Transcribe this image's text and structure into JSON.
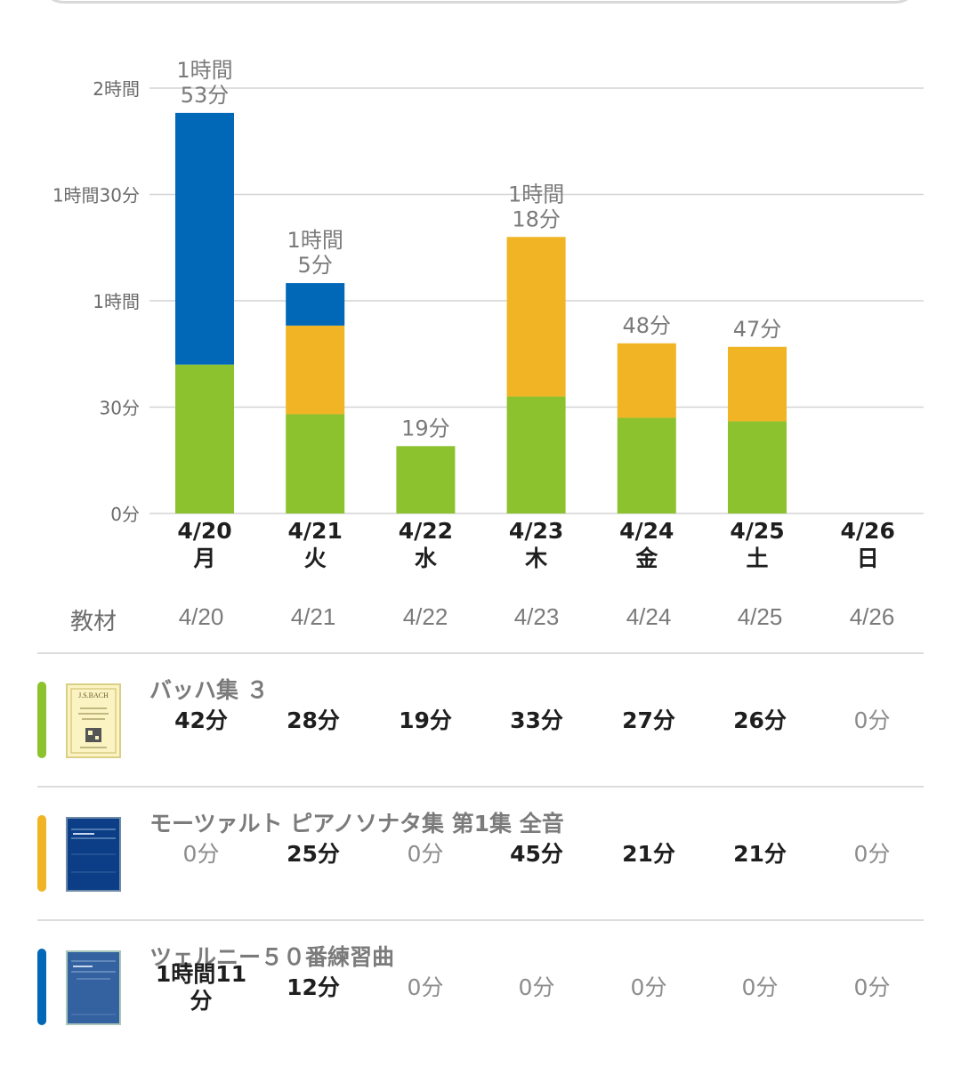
{
  "colors": {
    "bach": "#8dc22f",
    "mozart": "#f1b424",
    "czerny": "#0068b7",
    "grid": "#d4d4d4",
    "axis_text": "#6b6b6b"
  },
  "chart_data": {
    "type": "bar",
    "stacked": true,
    "unit": "minutes",
    "categories": [
      "4/20",
      "4/21",
      "4/22",
      "4/23",
      "4/24",
      "4/25",
      "4/26"
    ],
    "weekdays": [
      "月",
      "火",
      "水",
      "木",
      "金",
      "土",
      "日"
    ],
    "series": [
      {
        "name": "バッハ集 ３",
        "values": [
          42,
          28,
          19,
          33,
          27,
          26,
          0
        ]
      },
      {
        "name": "モーツァルト ピアノソナタ集 第1集 全音",
        "values": [
          0,
          25,
          0,
          45,
          21,
          21,
          0
        ]
      },
      {
        "name": "ツェルニー５０番練習曲",
        "values": [
          71,
          12,
          0,
          0,
          0,
          0,
          0
        ]
      }
    ],
    "totals_labels": [
      [
        "1時間",
        "53分"
      ],
      [
        "1時間",
        "5分"
      ],
      [
        "19分"
      ],
      [
        "1時間",
        "18分"
      ],
      [
        "48分"
      ],
      [
        "47分"
      ],
      []
    ],
    "y_ticks": [
      0,
      30,
      60,
      90,
      120
    ],
    "y_tick_labels": [
      "0分",
      "30分",
      "1時間",
      "1時間30分",
      "2時間"
    ],
    "ylim": [
      0,
      120
    ],
    "grid": true
  },
  "table": {
    "header_label": "教材",
    "dates": [
      "4/20",
      "4/21",
      "4/22",
      "4/23",
      "4/24",
      "4/25",
      "4/26"
    ],
    "rows": [
      {
        "title": "バッハ集 ３",
        "book_icon": "bach-book-cover-icon",
        "cells": [
          "42分",
          "28分",
          "19分",
          "33分",
          "27分",
          "26分",
          "0分"
        ]
      },
      {
        "title": "モーツァルト ピアノソナタ集 第1集 全音",
        "book_icon": "mozart-book-cover-icon",
        "cells": [
          "0分",
          "25分",
          "0分",
          "45分",
          "21分",
          "21分",
          "0分"
        ]
      },
      {
        "title": "ツェルニー５０番練習曲",
        "book_icon": "czerny-book-cover-icon",
        "cells": [
          "1時間11\n分",
          "12分",
          "0分",
          "0分",
          "0分",
          "0分",
          "0分"
        ]
      }
    ]
  },
  "book_cover": {
    "bach_text": "J.S.BACH"
  }
}
